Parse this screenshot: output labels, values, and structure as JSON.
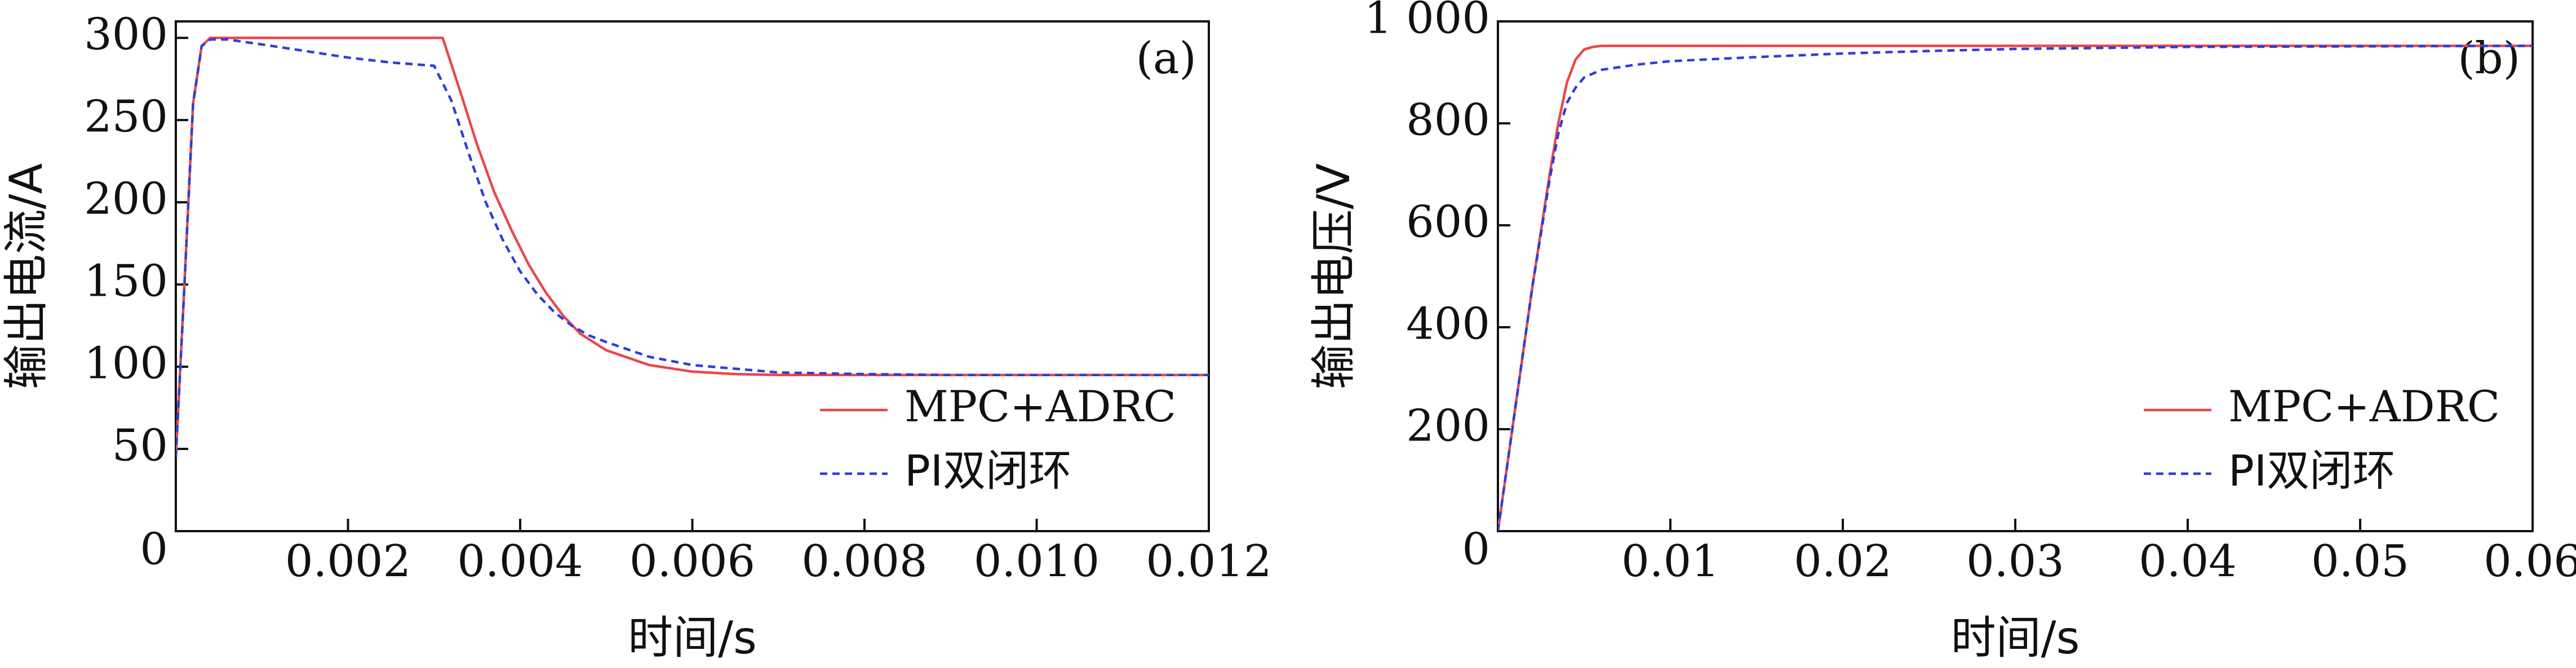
{
  "chart_data": [
    {
      "panel": "(a)",
      "type": "line",
      "xlabel": "时间/s",
      "ylabel": "输出电流/A",
      "xlim": [
        0,
        0.012
      ],
      "ylim": [
        0,
        310
      ],
      "xticks": [
        {
          "v": 0.002,
          "label": "0.002"
        },
        {
          "v": 0.004,
          "label": "0.004"
        },
        {
          "v": 0.006,
          "label": "0.006"
        },
        {
          "v": 0.008,
          "label": "0.008"
        },
        {
          "v": 0.01,
          "label": "0.010"
        },
        {
          "v": 0.012,
          "label": "0.012"
        }
      ],
      "yticks": [
        {
          "v": 0,
          "label": "0"
        },
        {
          "v": 50,
          "label": "50"
        },
        {
          "v": 100,
          "label": "100"
        },
        {
          "v": 150,
          "label": "150"
        },
        {
          "v": 200,
          "label": "200"
        },
        {
          "v": 250,
          "label": "250"
        },
        {
          "v": 300,
          "label": "300"
        }
      ],
      "legend_position": "bottom-right",
      "series": [
        {
          "name": "MPC+ADRC",
          "color": "#e8474c",
          "dash": "solid",
          "points": [
            [
              0,
              45
            ],
            [
              0.0001,
              150
            ],
            [
              0.0002,
              260
            ],
            [
              0.0003,
              295
            ],
            [
              0.0004,
              300
            ],
            [
              0.001,
              300
            ],
            [
              0.002,
              300
            ],
            [
              0.0031,
              300
            ],
            [
              0.0033,
              268
            ],
            [
              0.0035,
              235
            ],
            [
              0.0037,
              206
            ],
            [
              0.0039,
              183
            ],
            [
              0.0041,
              162
            ],
            [
              0.0043,
              145
            ],
            [
              0.0045,
              131
            ],
            [
              0.0047,
              120
            ],
            [
              0.005,
              110
            ],
            [
              0.0055,
              101
            ],
            [
              0.006,
              97
            ],
            [
              0.0065,
              95.5
            ],
            [
              0.007,
              95
            ],
            [
              0.008,
              95
            ],
            [
              0.012,
              95
            ]
          ]
        },
        {
          "name": "PI双闭环",
          "color": "#2e3fd3",
          "dash": "dash",
          "points": [
            [
              0,
              45
            ],
            [
              0.0001,
              150
            ],
            [
              0.0002,
              260
            ],
            [
              0.0003,
              295
            ],
            [
              0.0004,
              299
            ],
            [
              0.0006,
              299
            ],
            [
              0.001,
              296
            ],
            [
              0.0015,
              292
            ],
            [
              0.002,
              288
            ],
            [
              0.0025,
              285
            ],
            [
              0.003,
              283
            ],
            [
              0.0032,
              262
            ],
            [
              0.0034,
              230
            ],
            [
              0.0036,
              200
            ],
            [
              0.0038,
              177
            ],
            [
              0.004,
              158
            ],
            [
              0.0042,
              144
            ],
            [
              0.0044,
              133
            ],
            [
              0.0046,
              125
            ],
            [
              0.0048,
              119
            ],
            [
              0.005,
              115
            ],
            [
              0.0055,
              106
            ],
            [
              0.006,
              101
            ],
            [
              0.007,
              96.5
            ],
            [
              0.008,
              95.5
            ],
            [
              0.009,
              95
            ],
            [
              0.012,
              95
            ]
          ]
        }
      ]
    },
    {
      "panel": "(b)",
      "type": "line",
      "xlabel": "时间/s",
      "ylabel": "输出电压/V",
      "xlim": [
        0,
        0.06
      ],
      "ylim": [
        0,
        1000
      ],
      "xticks": [
        {
          "v": 0.01,
          "label": "0.01"
        },
        {
          "v": 0.02,
          "label": "0.02"
        },
        {
          "v": 0.03,
          "label": "0.03"
        },
        {
          "v": 0.04,
          "label": "0.04"
        },
        {
          "v": 0.05,
          "label": "0.05"
        },
        {
          "v": 0.06,
          "label": "0.06"
        }
      ],
      "yticks": [
        {
          "v": 0,
          "label": "0"
        },
        {
          "v": 200,
          "label": "200"
        },
        {
          "v": 400,
          "label": "400"
        },
        {
          "v": 600,
          "label": "600"
        },
        {
          "v": 800,
          "label": "800"
        },
        {
          "v": 1000,
          "label": "1 000"
        }
      ],
      "legend_position": "bottom-right",
      "series": [
        {
          "name": "MPC+ADRC",
          "color": "#e8474c",
          "dash": "solid",
          "points": [
            [
              0,
              0
            ],
            [
              0.001,
              240
            ],
            [
              0.002,
              480
            ],
            [
              0.003,
              700
            ],
            [
              0.0035,
              800
            ],
            [
              0.004,
              880
            ],
            [
              0.0045,
              925
            ],
            [
              0.005,
              945
            ],
            [
              0.0055,
              950
            ],
            [
              0.006,
              952
            ],
            [
              0.01,
              952
            ],
            [
              0.06,
              952
            ]
          ]
        },
        {
          "name": "PI双闭环",
          "color": "#2e3fd3",
          "dash": "dash",
          "points": [
            [
              0,
              0
            ],
            [
              0.001,
              240
            ],
            [
              0.002,
              480
            ],
            [
              0.003,
              690
            ],
            [
              0.0035,
              780
            ],
            [
              0.004,
              840
            ],
            [
              0.0045,
              870
            ],
            [
              0.005,
              890
            ],
            [
              0.006,
              905
            ],
            [
              0.008,
              915
            ],
            [
              0.01,
              922
            ],
            [
              0.015,
              930
            ],
            [
              0.02,
              937
            ],
            [
              0.025,
              942
            ],
            [
              0.03,
              946
            ],
            [
              0.04,
              950
            ],
            [
              0.05,
              951
            ],
            [
              0.06,
              952
            ]
          ]
        }
      ]
    }
  ]
}
